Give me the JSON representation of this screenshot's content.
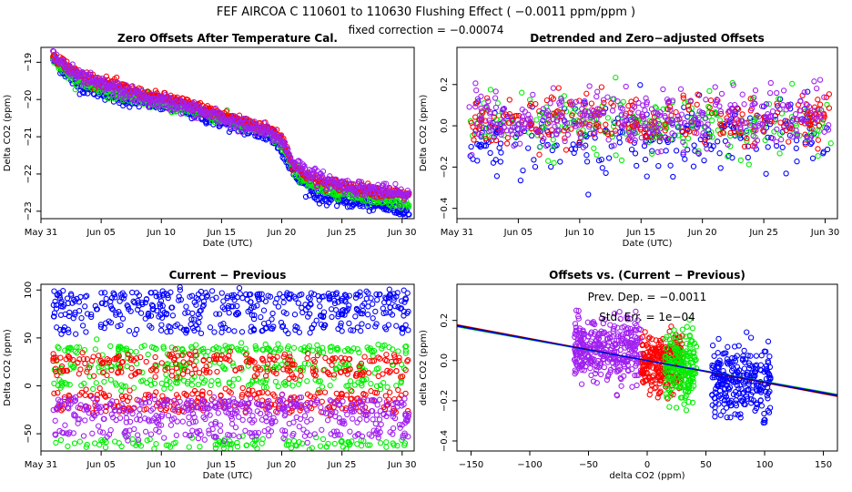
{
  "figure": {
    "title": "FEF   AIRCOA C   110601 to 110630   Flushing Effect ( −0.0011 ppm/ppm )",
    "subtitle": "fixed correction = −0.00074"
  },
  "colors": {
    "blue": "#0000ff",
    "green": "#00ee00",
    "red": "#ff0000",
    "purple": "#a020f0",
    "axis": "#000000"
  },
  "chart_data": [
    {
      "id": "zero-offsets",
      "type": "scatter",
      "title": "Zero Offsets After Temperature Cal.",
      "xlabel": "Date (UTC)",
      "ylabel": "Delta CO2 (ppm)",
      "xlim": [
        0,
        31
      ],
      "ylim": [
        -23.2,
        -18.6
      ],
      "x_ticks": [
        0,
        5,
        10,
        15,
        20,
        25,
        30
      ],
      "x_tick_labels": [
        "May 31",
        "Jun 05",
        "Jun 10",
        "Jun 15",
        "Jun 20",
        "Jun 25",
        "Jun 30"
      ],
      "y_ticks": [
        -23,
        -22,
        -21,
        -20,
        -19
      ],
      "y_tick_labels": [
        "−23",
        "−22",
        "−21",
        "−20",
        "−19"
      ],
      "series": [
        {
          "name": "blue",
          "color": "blue",
          "offset": -0.25,
          "spread": 0.09,
          "x": [
            1,
            3,
            5,
            7,
            9,
            11,
            13,
            15,
            17,
            19,
            20,
            21,
            23,
            25,
            27,
            29,
            30.5
          ],
          "y": [
            -18.9,
            -19.6,
            -19.8,
            -20.0,
            -20.1,
            -20.2,
            -20.4,
            -20.6,
            -20.8,
            -21.0,
            -21.3,
            -22.0,
            -22.6,
            -22.7,
            -22.8,
            -22.9,
            -23.0
          ]
        },
        {
          "name": "green",
          "color": "green",
          "offset": -0.12,
          "spread": 0.08,
          "x": [
            1,
            3,
            5,
            7,
            9,
            11,
            13,
            15,
            17,
            19,
            20,
            21,
            23,
            25,
            27,
            29,
            30.5
          ],
          "y": [
            -18.9,
            -19.5,
            -19.7,
            -19.9,
            -20.0,
            -20.2,
            -20.3,
            -20.5,
            -20.7,
            -20.9,
            -21.2,
            -21.9,
            -22.4,
            -22.5,
            -22.6,
            -22.7,
            -22.8
          ]
        },
        {
          "name": "red",
          "color": "red",
          "offset": 0.05,
          "spread": 0.07,
          "x": [
            1,
            3,
            5,
            7,
            9,
            11,
            13,
            15,
            17,
            19,
            20,
            21,
            23,
            25,
            27,
            29,
            30.5
          ],
          "y": [
            -18.8,
            -19.3,
            -19.5,
            -19.7,
            -19.9,
            -20.0,
            -20.2,
            -20.4,
            -20.6,
            -20.8,
            -21.0,
            -21.8,
            -22.2,
            -22.3,
            -22.4,
            -22.5,
            -22.6
          ]
        },
        {
          "name": "purple",
          "color": "purple",
          "offset": 0.0,
          "spread": 0.1,
          "x": [
            1,
            3,
            5,
            7,
            9,
            11,
            13,
            15,
            17,
            19,
            20,
            21,
            23,
            25,
            27,
            29,
            30.5
          ],
          "y": [
            -18.8,
            -19.4,
            -19.6,
            -19.8,
            -20.0,
            -20.1,
            -20.3,
            -20.5,
            -20.7,
            -20.9,
            -21.1,
            -21.7,
            -22.1,
            -22.3,
            -22.4,
            -22.5,
            -22.6
          ]
        }
      ]
    },
    {
      "id": "detrended",
      "type": "scatter",
      "title": "Detrended and Zero−adjusted Offsets",
      "xlabel": "Date (UTC)",
      "ylabel": "Delta CO2 (ppm)",
      "xlim": [
        0,
        31
      ],
      "ylim": [
        -0.45,
        0.38
      ],
      "x_ticks": [
        0,
        5,
        10,
        15,
        20,
        25,
        30
      ],
      "x_tick_labels": [
        "May 31",
        "Jun 05",
        "Jun 10",
        "Jun 15",
        "Jun 20",
        "Jun 25",
        "Jun 30"
      ],
      "y_ticks": [
        -0.4,
        -0.2,
        0.0,
        0.2
      ],
      "y_tick_labels": [
        "−0.4",
        "−0.2",
        "0.0",
        "0.2"
      ],
      "series": [
        {
          "name": "blue",
          "color": "blue",
          "mean": -0.05,
          "sd": 0.09,
          "count": 260
        },
        {
          "name": "green",
          "color": "green",
          "mean": 0.0,
          "sd": 0.07,
          "count": 220
        },
        {
          "name": "red",
          "color": "red",
          "mean": 0.02,
          "sd": 0.06,
          "count": 260
        },
        {
          "name": "purple",
          "color": "purple",
          "mean": 0.04,
          "sd": 0.07,
          "count": 340
        }
      ]
    },
    {
      "id": "current-previous",
      "type": "scatter",
      "title": "Current − Previous",
      "xlabel": "Date (UTC)",
      "ylabel": "Delta CO2 (ppm)",
      "xlim": [
        0,
        31
      ],
      "ylim": [
        -68,
        106
      ],
      "x_ticks": [
        0,
        5,
        10,
        15,
        20,
        25,
        30
      ],
      "x_tick_labels": [
        "May 31",
        "Jun 05",
        "Jun 10",
        "Jun 15",
        "Jun 20",
        "Jun 25",
        "Jun 30"
      ],
      "y_ticks": [
        -50,
        0,
        50,
        100
      ],
      "y_tick_labels": [
        "−50",
        "0",
        "50",
        "100"
      ],
      "series": [
        {
          "name": "blue",
          "color": "blue",
          "levels": [
            95,
            75,
            60,
            85
          ]
        },
        {
          "name": "green",
          "color": "green",
          "levels": [
            38,
            20,
            2,
            -60
          ]
        },
        {
          "name": "red",
          "color": "red",
          "levels": [
            28,
            15,
            -10,
            -22
          ]
        },
        {
          "name": "purple",
          "color": "purple",
          "levels": [
            -18,
            -25,
            -35,
            -50
          ]
        }
      ]
    },
    {
      "id": "offsets-vs-diff",
      "type": "scatter",
      "title": "Offsets vs. (Current − Previous)",
      "xlabel": "delta CO2 (ppm)",
      "ylabel": "delta CO2 (ppm)",
      "xlim": [
        -162,
        162
      ],
      "ylim": [
        -0.45,
        0.38
      ],
      "x_ticks": [
        -150,
        -100,
        -50,
        0,
        50,
        100,
        150
      ],
      "x_tick_labels": [
        "−150",
        "−100",
        "−50",
        "0",
        "50",
        "100",
        "150"
      ],
      "y_ticks": [
        -0.4,
        -0.2,
        0.0,
        0.2
      ],
      "y_tick_labels": [
        "−0.4",
        "−0.2",
        "0.0",
        "0.2"
      ],
      "annotations": [
        "Prev. Dep. =  −0.0011",
        "Std. Err. =  1e−04"
      ],
      "clusters": [
        {
          "name": "purple",
          "color": "purple",
          "x_range": [
            -62,
            -5
          ],
          "mean": 0.05,
          "sd": 0.08,
          "count": 360
        },
        {
          "name": "red",
          "color": "red",
          "x_range": [
            -5,
            30
          ],
          "mean": -0.01,
          "sd": 0.07,
          "count": 260
        },
        {
          "name": "green",
          "color": "green",
          "x_range": [
            15,
            42
          ],
          "mean": -0.03,
          "sd": 0.08,
          "count": 200
        },
        {
          "name": "blue",
          "color": "blue",
          "x_range": [
            55,
            105
          ],
          "mean": -0.1,
          "sd": 0.09,
          "count": 260
        }
      ],
      "fit_lines": [
        {
          "name": "red-fit",
          "color": "red",
          "slope": -0.0011,
          "intercept": 0.0
        },
        {
          "name": "green-fit",
          "color": "green",
          "slope": -0.00104,
          "intercept": 0.0
        },
        {
          "name": "black-fit",
          "color": "axis",
          "slope": -0.00108,
          "intercept": 0.0
        },
        {
          "name": "blue-fit",
          "color": "blue",
          "slope": -0.00106,
          "intercept": 0.0
        }
      ]
    }
  ]
}
